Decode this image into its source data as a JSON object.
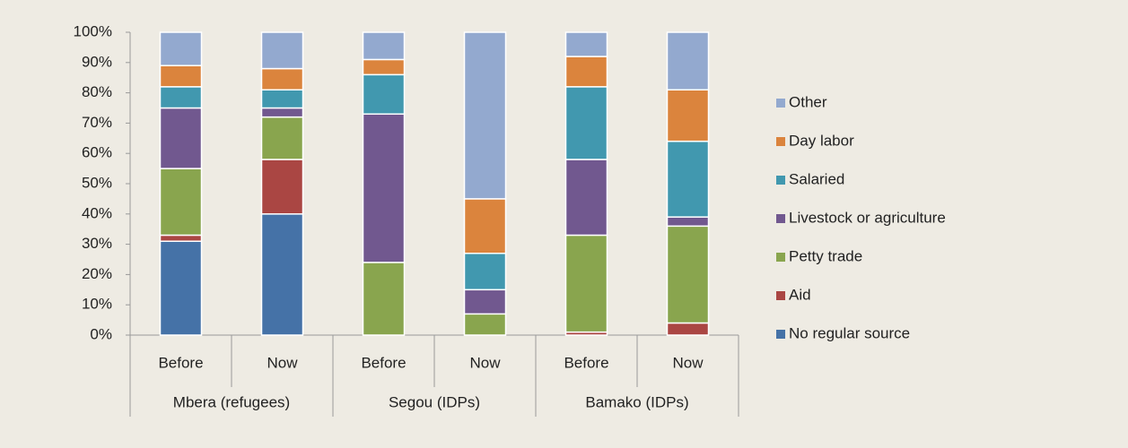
{
  "chart_data": {
    "type": "stacked-bar",
    "categories": [
      "Before",
      "Now",
      "Before",
      "Now",
      "Before",
      "Now"
    ],
    "category_groups": [
      "Mbera (refugees)",
      "Segou (IDPs)",
      "Bamako (IDPs)"
    ],
    "series": [
      {
        "name": "No regular source",
        "color": "#4572a7",
        "values": [
          31,
          40,
          0,
          0,
          0,
          0
        ]
      },
      {
        "name": "Aid",
        "color": "#aa4643",
        "values": [
          2,
          18,
          0,
          0,
          1,
          4
        ]
      },
      {
        "name": "Petty trade",
        "color": "#89a54e",
        "values": [
          22,
          14,
          24,
          7,
          32,
          32
        ]
      },
      {
        "name": "Livestock  or agriculture",
        "color": "#71588f",
        "values": [
          20,
          3,
          49,
          8,
          25,
          3
        ]
      },
      {
        "name": "Salaried",
        "color": "#4198af",
        "values": [
          7,
          6,
          13,
          12,
          24,
          25
        ]
      },
      {
        "name": "Day labor",
        "color": "#db843d",
        "values": [
          7,
          7,
          5,
          18,
          10,
          17
        ]
      },
      {
        "name": "Other",
        "color": "#93a9cf",
        "values": [
          11,
          12,
          9,
          55,
          8,
          19
        ]
      }
    ],
    "ylim": [
      0,
      100
    ],
    "yticks": [
      {
        "value": 0,
        "label": "0%"
      },
      {
        "value": 10,
        "label": "10%"
      },
      {
        "value": 20,
        "label": "20%"
      },
      {
        "value": 30,
        "label": "30%"
      },
      {
        "value": 40,
        "label": "40%"
      },
      {
        "value": 50,
        "label": "50%"
      },
      {
        "value": 60,
        "label": "60%"
      },
      {
        "value": 70,
        "label": "70%"
      },
      {
        "value": 80,
        "label": "80%"
      },
      {
        "value": 90,
        "label": "90%"
      },
      {
        "value": 100,
        "label": "100%"
      }
    ],
    "legend": "right"
  }
}
